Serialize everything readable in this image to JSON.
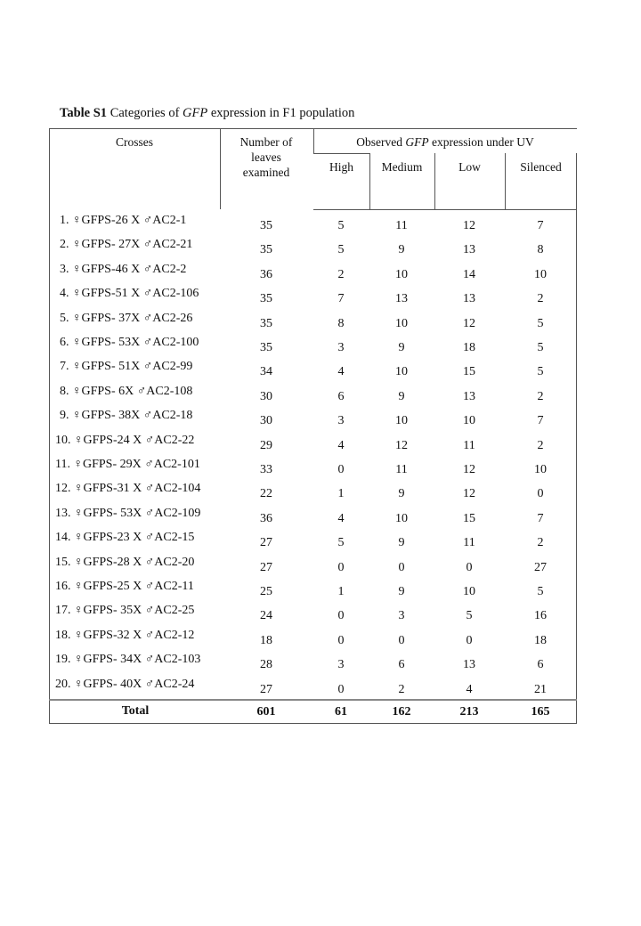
{
  "caption": {
    "label": "Table S1",
    "text_before": " Categories of ",
    "italic": "GFP",
    "text_after": " expression in F1 population"
  },
  "headers": {
    "crosses": "Crosses",
    "number": "Number of leaves examined",
    "observed_before": "Observed ",
    "observed_italic": "GFP",
    "observed_after": " expression  under UV",
    "high": "High",
    "medium": "Medium",
    "low": "Low",
    "silenced": "Silenced"
  },
  "rows": [
    {
      "cross": "1. ♀GFPS-26 X ♂AC2-1",
      "n": "35",
      "high": "5",
      "medium": "11",
      "low": "12",
      "silenced": "7"
    },
    {
      "cross": "2. ♀GFPS- 27X ♂AC2-21",
      "n": "35",
      "high": "5",
      "medium": "9",
      "low": "13",
      "silenced": "8"
    },
    {
      "cross": "3. ♀GFPS-46 X ♂AC2-2",
      "n": "36",
      "high": "2",
      "medium": "10",
      "low": "14",
      "silenced": "10"
    },
    {
      "cross": "4. ♀GFPS-51 X ♂AC2-106",
      "n": "35",
      "high": "7",
      "medium": "13",
      "low": "13",
      "silenced": "2"
    },
    {
      "cross": "5. ♀GFPS- 37X ♂AC2-26",
      "n": "35",
      "high": "8",
      "medium": "10",
      "low": "12",
      "silenced": "5"
    },
    {
      "cross": "6. ♀GFPS- 53X ♂AC2-100",
      "n": "35",
      "high": "3",
      "medium": "9",
      "low": "18",
      "silenced": "5"
    },
    {
      "cross": "7. ♀GFPS- 51X ♂AC2-99",
      "n": "34",
      "high": "4",
      "medium": "10",
      "low": "15",
      "silenced": "5"
    },
    {
      "cross": "8. ♀GFPS- 6X ♂AC2-108",
      "n": "30",
      "high": "6",
      "medium": "9",
      "low": "13",
      "silenced": "2"
    },
    {
      "cross": "9. ♀GFPS- 38X ♂AC2-18",
      "n": "30",
      "high": "3",
      "medium": "10",
      "low": "10",
      "silenced": "7"
    },
    {
      "cross": "10. ♀GFPS-24 X ♂AC2-22",
      "n": "29",
      "high": "4",
      "medium": "12",
      "low": "11",
      "silenced": "2"
    },
    {
      "cross": "11. ♀GFPS- 29X ♂AC2-101",
      "n": "33",
      "high": "0",
      "medium": "11",
      "low": "12",
      "silenced": "10"
    },
    {
      "cross": "12. ♀GFPS-31 X ♂AC2-104",
      "n": "22",
      "high": "1",
      "medium": "9",
      "low": "12",
      "silenced": "0"
    },
    {
      "cross": "13. ♀GFPS- 53X ♂AC2-109",
      "n": "36",
      "high": "4",
      "medium": "10",
      "low": "15",
      "silenced": "7"
    },
    {
      "cross": "14. ♀GFPS-23 X ♂AC2-15",
      "n": "27",
      "high": "5",
      "medium": "9",
      "low": "11",
      "silenced": "2"
    },
    {
      "cross": "15. ♀GFPS-28 X ♂AC2-20",
      "n": "27",
      "high": "0",
      "medium": "0",
      "low": "0",
      "silenced": "27"
    },
    {
      "cross": "16. ♀GFPS-25 X ♂AC2-11",
      "n": "25",
      "high": "1",
      "medium": "9",
      "low": "10",
      "silenced": "5"
    },
    {
      "cross": "17. ♀GFPS- 35X ♂AC2-25",
      "n": "24",
      "high": "0",
      "medium": "3",
      "low": "5",
      "silenced": "16"
    },
    {
      "cross": "18. ♀GFPS-32 X ♂AC2-12",
      "n": "18",
      "high": "0",
      "medium": "0",
      "low": "0",
      "silenced": "18"
    },
    {
      "cross": "19. ♀GFPS- 34X ♂AC2-103",
      "n": "28",
      "high": "3",
      "medium": "6",
      "low": "13",
      "silenced": "6"
    },
    {
      "cross": "20. ♀GFPS- 40X ♂AC2-24",
      "n": "27",
      "high": "0",
      "medium": "2",
      "low": "4",
      "silenced": "21"
    }
  ],
  "total": {
    "label": "Total",
    "n": "601",
    "high": "61",
    "medium": "162",
    "low": "213",
    "silenced": "165"
  }
}
